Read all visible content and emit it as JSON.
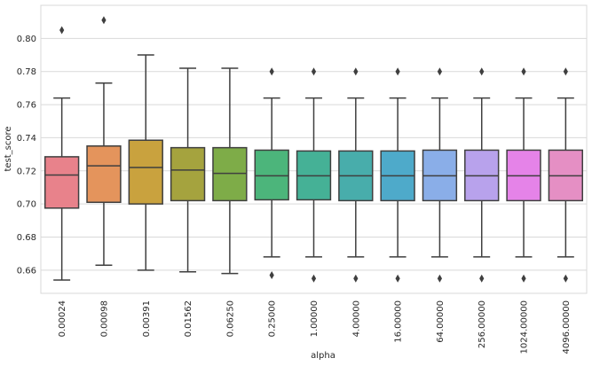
{
  "chart_data": {
    "type": "box",
    "xlabel": "alpha",
    "ylabel": "test_score",
    "ylim": [
      0.646,
      0.82
    ],
    "yticks": [
      0.66,
      0.68,
      0.7,
      0.72,
      0.74,
      0.76,
      0.78,
      0.8
    ],
    "ytick_labels": [
      "0.66",
      "0.68",
      "0.70",
      "0.72",
      "0.74",
      "0.76",
      "0.78",
      "0.80"
    ],
    "grid": true,
    "legend": "none",
    "categories": [
      "0.00024",
      "0.00098",
      "0.00391",
      "0.01562",
      "0.06250",
      "0.25000",
      "1.00000",
      "4.00000",
      "16.00000",
      "64.00000",
      "256.00000",
      "1024.00000",
      "4096.00000"
    ],
    "boxes": [
      {
        "label": "0.00024",
        "whisker_low": 0.654,
        "q1": 0.6975,
        "median": 0.7175,
        "q3": 0.7285,
        "whisker_high": 0.764,
        "outliers": [
          0.805
        ],
        "color": "#e8828b"
      },
      {
        "label": "0.00098",
        "whisker_low": 0.663,
        "q1": 0.701,
        "median": 0.723,
        "q3": 0.735,
        "whisker_high": 0.773,
        "outliers": [
          0.811
        ],
        "color": "#e4945c"
      },
      {
        "label": "0.00391",
        "whisker_low": 0.66,
        "q1": 0.7,
        "median": 0.722,
        "q3": 0.7385,
        "whisker_high": 0.79,
        "outliers": [],
        "color": "#c9a23e"
      },
      {
        "label": "0.01562",
        "whisker_low": 0.659,
        "q1": 0.702,
        "median": 0.7205,
        "q3": 0.734,
        "whisker_high": 0.782,
        "outliers": [],
        "color": "#a5a33e"
      },
      {
        "label": "0.06250",
        "whisker_low": 0.658,
        "q1": 0.702,
        "median": 0.7185,
        "q3": 0.734,
        "whisker_high": 0.782,
        "outliers": [],
        "color": "#7eac48"
      },
      {
        "label": "0.25000",
        "whisker_low": 0.668,
        "q1": 0.7025,
        "median": 0.717,
        "q3": 0.7325,
        "whisker_high": 0.764,
        "outliers": [
          0.657,
          0.78
        ],
        "color": "#4cb57b"
      },
      {
        "label": "1.00000",
        "whisker_low": 0.668,
        "q1": 0.7025,
        "median": 0.717,
        "q3": 0.732,
        "whisker_high": 0.764,
        "outliers": [
          0.655,
          0.78
        ],
        "color": "#45b196"
      },
      {
        "label": "4.00000",
        "whisker_low": 0.668,
        "q1": 0.702,
        "median": 0.717,
        "q3": 0.732,
        "whisker_high": 0.764,
        "outliers": [
          0.655,
          0.78
        ],
        "color": "#48adab"
      },
      {
        "label": "16.00000",
        "whisker_low": 0.668,
        "q1": 0.702,
        "median": 0.717,
        "q3": 0.732,
        "whisker_high": 0.764,
        "outliers": [
          0.655,
          0.78
        ],
        "color": "#4eaaca"
      },
      {
        "label": "64.00000",
        "whisker_low": 0.668,
        "q1": 0.702,
        "median": 0.717,
        "q3": 0.7325,
        "whisker_high": 0.764,
        "outliers": [
          0.655,
          0.78
        ],
        "color": "#8aaee8"
      },
      {
        "label": "256.00000",
        "whisker_low": 0.668,
        "q1": 0.702,
        "median": 0.717,
        "q3": 0.7325,
        "whisker_high": 0.764,
        "outliers": [
          0.655,
          0.78
        ],
        "color": "#b8a2ec"
      },
      {
        "label": "1024.00000",
        "whisker_low": 0.668,
        "q1": 0.702,
        "median": 0.717,
        "q3": 0.7325,
        "whisker_high": 0.764,
        "outliers": [
          0.655,
          0.78
        ],
        "color": "#e583e8"
      },
      {
        "label": "4096.00000",
        "whisker_low": 0.668,
        "q1": 0.702,
        "median": 0.717,
        "q3": 0.7325,
        "whisker_high": 0.764,
        "outliers": [
          0.655,
          0.78
        ],
        "color": "#e58fc4"
      }
    ],
    "style": {
      "background": "#ffffff",
      "grid_color": "#d9d9d9",
      "line_color": "#3f3f3f",
      "spine_color": "#d9d9d9"
    }
  }
}
